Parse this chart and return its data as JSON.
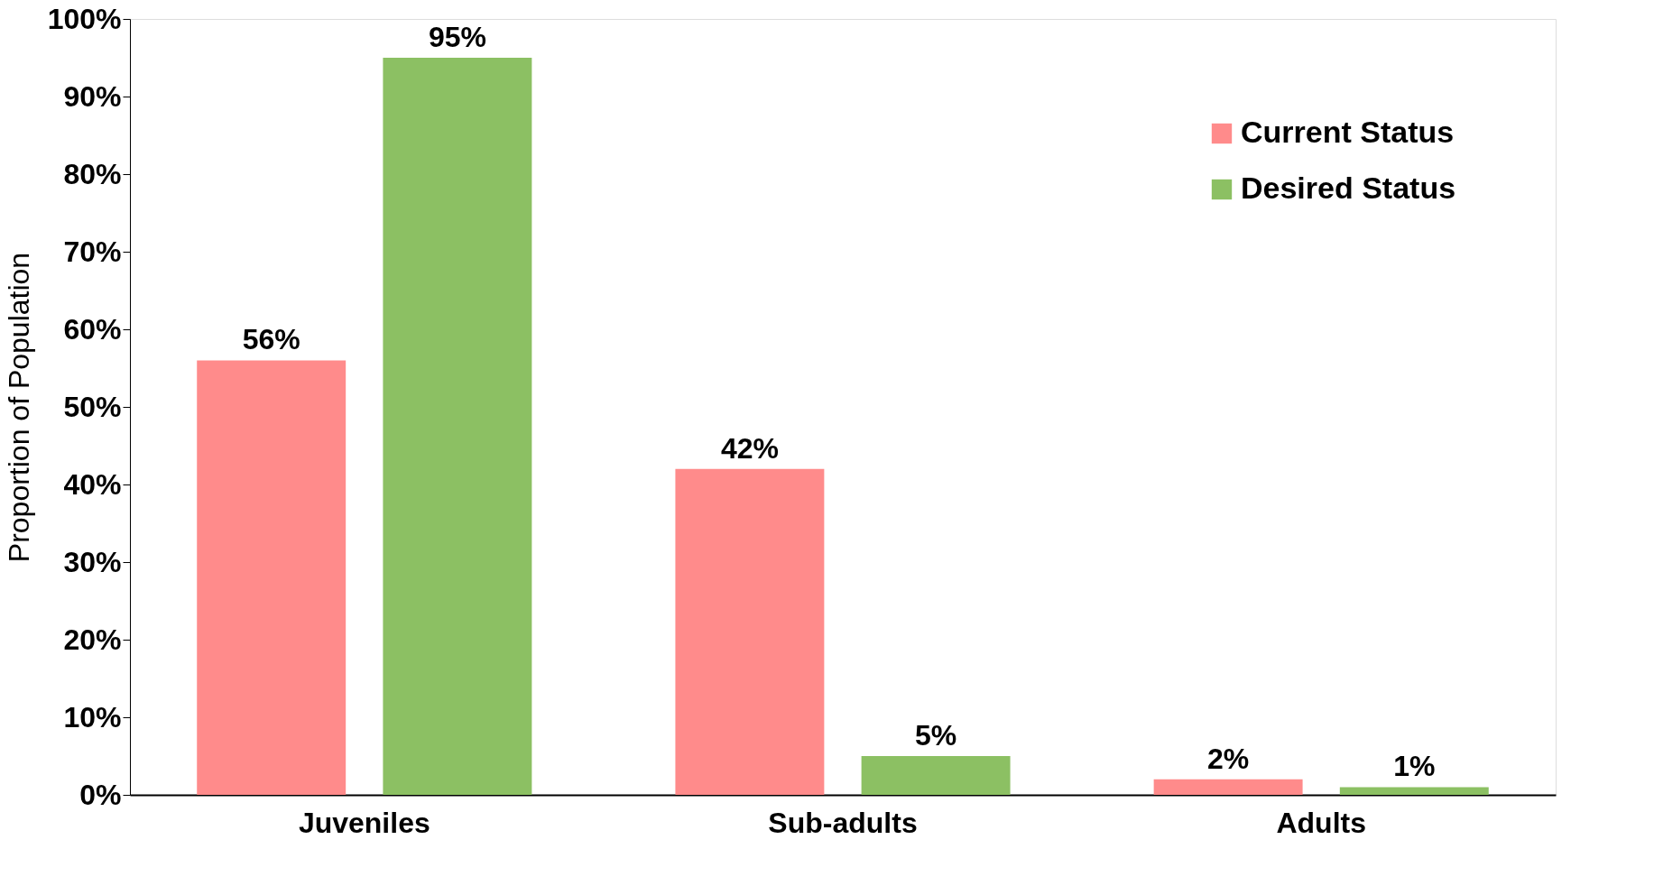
{
  "chart_data": {
    "type": "bar",
    "ylabel": "Proportion of Population",
    "categories": [
      "Juveniles",
      "Sub-adults",
      "Adults"
    ],
    "series": [
      {
        "name": "Current Status",
        "color": "#ff8b8b",
        "values": [
          56,
          42,
          2
        ]
      },
      {
        "name": "Desired Status",
        "color": "#8cc063",
        "values": [
          95,
          5,
          1
        ]
      }
    ],
    "ylim": [
      0,
      100
    ],
    "yticks": [
      {
        "value": 0,
        "label": "0%"
      },
      {
        "value": 10,
        "label": "10%"
      },
      {
        "value": 20,
        "label": "20%"
      },
      {
        "value": 30,
        "label": "30%"
      },
      {
        "value": 40,
        "label": "40%"
      },
      {
        "value": 50,
        "label": "50%"
      },
      {
        "value": 60,
        "label": "60%"
      },
      {
        "value": 70,
        "label": "70%"
      },
      {
        "value": 80,
        "label": "80%"
      },
      {
        "value": 90,
        "label": "90%"
      },
      {
        "value": 100,
        "label": "100%"
      }
    ],
    "value_labels": [
      [
        "56%",
        "42%",
        "2%"
      ],
      [
        "95%",
        "5%",
        "1%"
      ]
    ],
    "grid": false,
    "legend": "top right"
  }
}
